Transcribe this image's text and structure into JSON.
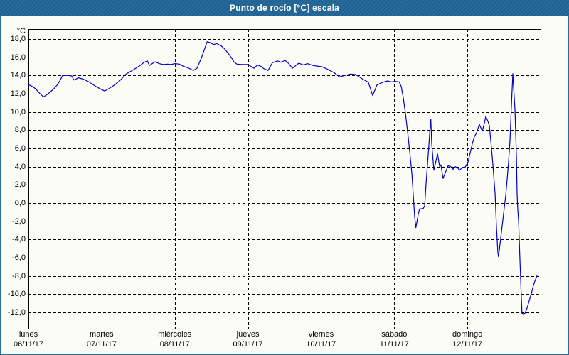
{
  "window": {
    "title": "Punto de rocío [°C] escala"
  },
  "colors": {
    "titlebar": "#1f6496",
    "frame": "#2a6a9c",
    "background": "#fcfcf6",
    "line": "#0000c8",
    "grid": "#000000",
    "text": "#000000",
    "title_text": "#ffffff"
  },
  "chart_data": {
    "type": "line",
    "title": "Punto de rocío [°C] escala",
    "ylabel": "°C",
    "unit_label": "°C",
    "ylim": [
      -13.56,
      19.09
    ],
    "y_axis_display_range": [
      -12,
      18
    ],
    "y_step": 2,
    "xlim_hours": [
      0,
      168
    ],
    "grid": "black dashed gridlines: horizontal every 2°C, vertical at each day boundary",
    "legend": "none",
    "y_ticks": {
      "values": [
        18,
        16,
        14,
        12,
        10,
        8,
        6,
        4,
        2,
        0,
        -2,
        -4,
        -6,
        -8,
        -10,
        -12
      ],
      "labels": [
        "18,0",
        "16,0",
        "14,0",
        "12,0",
        "10,0",
        "8,0",
        "6,0",
        "4,0",
        "2,0",
        "0,0",
        "-2,0",
        "-4,0",
        "-6,0",
        "-8,0",
        "-10,0",
        "-12,0"
      ]
    },
    "days": [
      {
        "name": "lunes",
        "date": "06/11/17"
      },
      {
        "name": "martes",
        "date": "07/11/17"
      },
      {
        "name": "miércoles",
        "date": "08/11/17"
      },
      {
        "name": "jueves",
        "date": "09/11/17"
      },
      {
        "name": "viernes",
        "date": "10/11/17"
      },
      {
        "name": "sábado",
        "date": "11/11/17"
      },
      {
        "name": "domingo",
        "date": "12/11/17"
      }
    ],
    "series": [
      {
        "name": "Punto de rocío",
        "color": "#0000c8",
        "x_hours": [
          0.0,
          1.2,
          2.3,
          3.5,
          4.9,
          6.1,
          7.0,
          8.2,
          9.3,
          10.3,
          11.2,
          12.8,
          14.2,
          14.9,
          15.6,
          16.3,
          18.0,
          19.8,
          21.2,
          22.6,
          24.0,
          25.0,
          26.1,
          28.0,
          29.9,
          32.0,
          33.8,
          36.2,
          38.0,
          39.0,
          39.7,
          40.6,
          41.5,
          42.9,
          44.3,
          45.5,
          46.7,
          48.1,
          49.5,
          50.9,
          52.3,
          54.1,
          55.3,
          56.7,
          57.9,
          58.6,
          59.7,
          60.7,
          61.8,
          63.2,
          64.4,
          65.6,
          66.5,
          67.4,
          68.4,
          70.0,
          72.1,
          73.0,
          74.0,
          75.1,
          76.3,
          77.2,
          78.6,
          80.0,
          81.7,
          82.8,
          84.2,
          85.4,
          86.6,
          87.7,
          88.7,
          90.3,
          91.5,
          93.3,
          95.2,
          96.4,
          98.0,
          100.3,
          102.0,
          103.8,
          105.5,
          107.3,
          109.7,
          111.5,
          112.9,
          114.3,
          116.2,
          117.8,
          119.0,
          120.4,
          121.6,
          122.3,
          123.0,
          123.7,
          124.4,
          125.1,
          125.8,
          126.2,
          126.7,
          127.1,
          127.9,
          128.3,
          129.5,
          130.0,
          130.4,
          131.1,
          131.6,
          132.0,
          132.3,
          133.0,
          133.5,
          134.2,
          134.9,
          135.3,
          136.0,
          136.7,
          137.7,
          138.6,
          139.3,
          140.0,
          140.7,
          141.4,
          142.3,
          143.3,
          144.2,
          144.9,
          145.6,
          146.3,
          147.0,
          147.9,
          148.9,
          149.6,
          150.0,
          150.7,
          151.2,
          151.9,
          152.4,
          153.1,
          153.5,
          154.0,
          154.2,
          154.7,
          155.4,
          156.1,
          156.6,
          157.0,
          157.5,
          158.0,
          158.4,
          158.9,
          159.1,
          159.6,
          160.1,
          160.3,
          160.5,
          160.8,
          161.2,
          161.7,
          161.9,
          162.4,
          162.9,
          163.6,
          164.3,
          165.0,
          165.7,
          166.1,
          166.8
        ],
        "values": [
          13.0,
          12.8,
          12.55,
          12.1,
          11.65,
          11.9,
          12.15,
          12.5,
          12.9,
          13.4,
          14.0,
          14.0,
          13.95,
          13.5,
          13.6,
          13.75,
          13.6,
          13.3,
          13.0,
          12.7,
          12.45,
          12.3,
          12.5,
          12.9,
          13.4,
          14.15,
          14.5,
          15.0,
          15.45,
          15.6,
          15.1,
          15.3,
          15.5,
          15.3,
          15.2,
          15.25,
          15.2,
          15.3,
          15.25,
          15.0,
          14.85,
          14.55,
          14.8,
          15.9,
          17.0,
          17.7,
          17.6,
          17.4,
          17.5,
          17.25,
          16.9,
          16.4,
          16.0,
          15.5,
          15.25,
          15.2,
          15.2,
          15.0,
          14.8,
          15.15,
          15.0,
          14.75,
          14.55,
          15.4,
          15.6,
          15.45,
          15.65,
          15.3,
          14.8,
          15.1,
          15.35,
          15.15,
          15.3,
          15.1,
          15.0,
          14.95,
          14.7,
          14.3,
          13.85,
          14.0,
          14.15,
          14.1,
          13.6,
          13.25,
          11.8,
          12.95,
          13.25,
          13.4,
          13.3,
          13.35,
          13.3,
          12.8,
          11.5,
          9.8,
          7.8,
          5.6,
          3.2,
          1.0,
          -1.5,
          -2.7,
          -1.2,
          -0.65,
          -0.6,
          -0.3,
          2.0,
          5.2,
          7.5,
          9.2,
          6.5,
          3.6,
          4.3,
          5.4,
          4.0,
          4.2,
          2.7,
          3.3,
          4.1,
          4.0,
          3.7,
          4.0,
          3.9,
          3.6,
          3.9,
          3.95,
          4.5,
          5.5,
          6.5,
          7.3,
          7.7,
          8.65,
          7.9,
          8.8,
          9.5,
          9.0,
          8.5,
          6.0,
          4.1,
          1.0,
          -2.5,
          -5.5,
          -5.9,
          -4.5,
          -2.5,
          -0.5,
          0.9,
          2.5,
          4.5,
          7.0,
          10.5,
          14.2,
          13.0,
          10.3,
          5.0,
          1.0,
          -0.6,
          -2.0,
          -6.0,
          -10.5,
          -12.1,
          -12.15,
          -12.1,
          -11.5,
          -10.7,
          -9.9,
          -9.0,
          -8.6,
          -8.0
        ]
      }
    ]
  }
}
